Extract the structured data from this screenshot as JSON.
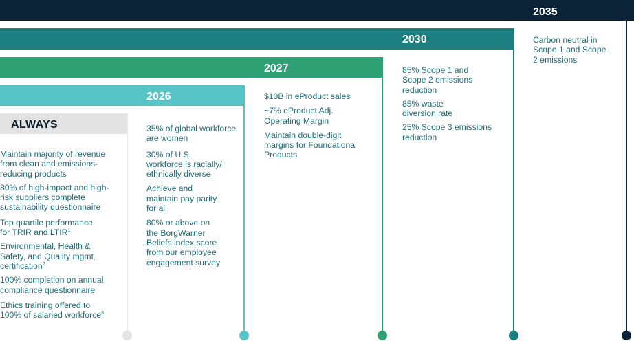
{
  "colors": {
    "y2035": "#0b2337",
    "y2030": "#1d7f80",
    "y2027": "#2f9f74",
    "y2026": "#56c3c7",
    "always": "#e3e3e3",
    "text": "#1f6b78"
  },
  "milestones": [
    {
      "year": "2035",
      "items": [
        "Carbon neutral in\nScope 1 and Scope\n2 emissions"
      ]
    },
    {
      "year": "2030",
      "items": [
        "85% Scope 1 and\nScope 2 emissions\nreduction",
        "85% waste\ndiversion rate",
        "25% Scope 3 emissions\nreduction"
      ]
    },
    {
      "year": "2027",
      "items": [
        "$10B in eProduct sales",
        "~7% eProduct Adj.\nOperating Margin",
        "Maintain double-digit\nmargins for Foundational\nProducts"
      ]
    },
    {
      "year": "2026",
      "items": [
        "35% of global workforce\nare women",
        "30% of U.S.\nworkforce is racially/\nethnically diverse",
        "Achieve and\nmaintain pay parity\nfor all",
        "80% or above on\nthe BorgWarner\nBeliefs index score\nfrom our employee\nengagement survey"
      ]
    }
  ],
  "always": {
    "label": "ALWAYS",
    "items": [
      {
        "text": "Maintain majority of revenue\nfrom clean and emissions-\nreducing products",
        "sup": ""
      },
      {
        "text": "80% of high-impact and high-\nrisk suppliers complete\nsustainability questionnaire",
        "sup": ""
      },
      {
        "text": "Top quartile performance\nfor TRIR and LTIR",
        "sup": "1"
      },
      {
        "text": "Environmental, Health &\nSafety, and Quality mgmt.\ncertification",
        "sup": "2"
      },
      {
        "text": "100% completion on annual\ncompliance questionnaire",
        "sup": ""
      },
      {
        "text": "Ethics training offered to\n100% of salaried workforce",
        "sup": "3"
      }
    ]
  }
}
